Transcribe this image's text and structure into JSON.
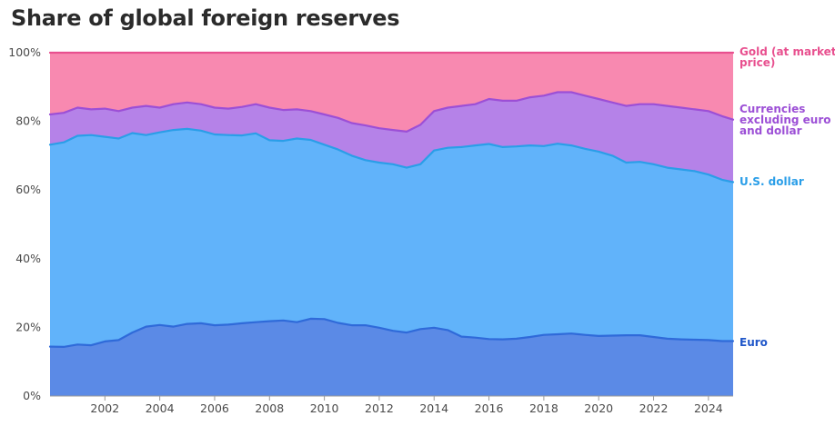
{
  "chart_data": {
    "type": "area",
    "stacked": true,
    "title": "Share of global foreign reserves",
    "xlabel": "",
    "ylabel": "",
    "ylim": [
      0,
      100
    ],
    "xlim": [
      2000.0,
      2024.9
    ],
    "y_ticks": [
      "0%",
      "20%",
      "40%",
      "60%",
      "80%",
      "100%"
    ],
    "x_ticks": [
      "2002",
      "2004",
      "2006",
      "2008",
      "2010",
      "2012",
      "2014",
      "2016",
      "2018",
      "2020",
      "2022",
      "2024"
    ],
    "grid": "horizontal",
    "x": [
      2000.0,
      2000.5,
      2001.0,
      2001.5,
      2002.0,
      2002.5,
      2003.0,
      2003.5,
      2004.0,
      2004.5,
      2005.0,
      2005.5,
      2006.0,
      2006.5,
      2007.0,
      2007.5,
      2008.0,
      2008.5,
      2009.0,
      2009.5,
      2010.0,
      2010.5,
      2011.0,
      2011.5,
      2012.0,
      2012.5,
      2013.0,
      2013.5,
      2014.0,
      2014.5,
      2015.0,
      2015.5,
      2016.0,
      2016.5,
      2017.0,
      2017.5,
      2018.0,
      2018.5,
      2019.0,
      2019.5,
      2020.0,
      2020.5,
      2021.0,
      2021.5,
      2022.0,
      2022.5,
      2023.0,
      2023.5,
      2024.0,
      2024.5,
      2024.9
    ],
    "series": [
      {
        "name": "Euro",
        "color": "#2f6ad9",
        "fill": "#5b8ae6",
        "values": [
          14.4,
          14.3,
          15.0,
          14.8,
          15.9,
          16.3,
          18.5,
          20.2,
          20.7,
          20.2,
          21.0,
          21.2,
          20.6,
          20.8,
          21.2,
          21.5,
          21.8,
          22.0,
          21.5,
          22.5,
          22.4,
          21.3,
          20.6,
          20.6,
          19.9,
          19.0,
          18.5,
          19.5,
          19.9,
          19.2,
          17.3,
          17.0,
          16.6,
          16.5,
          16.7,
          17.2,
          17.8,
          18.0,
          18.2,
          17.8,
          17.5,
          17.6,
          17.7,
          17.7,
          17.2,
          16.7,
          16.5,
          16.4,
          16.3,
          16.0,
          16.0
        ]
      },
      {
        "name": "U.S. dollar",
        "color": "#2a9ee8",
        "fill": "#61b3fa",
        "values": [
          73.2,
          73.9,
          75.8,
          76.0,
          75.5,
          75.0,
          76.6,
          76.0,
          76.8,
          77.5,
          77.8,
          77.3,
          76.2,
          76.0,
          75.9,
          76.5,
          74.5,
          74.3,
          75.0,
          74.6,
          73.2,
          71.8,
          70.0,
          68.7,
          68.0,
          67.5,
          66.5,
          67.5,
          71.5,
          72.3,
          72.5,
          73.0,
          73.4,
          72.5,
          72.7,
          73.0,
          72.8,
          73.5,
          73.0,
          72.0,
          71.2,
          70.0,
          68.0,
          68.2,
          67.5,
          66.5,
          66.0,
          65.5,
          64.5,
          63.0,
          62.3
        ]
      },
      {
        "name": "Currencies excluding euro and dollar",
        "color": "#9c4fd6",
        "fill": "#b582e8",
        "values": [
          82.0,
          82.5,
          84.0,
          83.5,
          83.7,
          83.0,
          84.0,
          84.5,
          84.0,
          85.0,
          85.5,
          85.0,
          84.0,
          83.7,
          84.2,
          85.0,
          84.0,
          83.3,
          83.5,
          83.0,
          82.0,
          81.0,
          79.5,
          78.8,
          78.0,
          77.5,
          77.0,
          79.0,
          83.0,
          84.0,
          84.5,
          85.0,
          86.5,
          86.0,
          86.0,
          87.0,
          87.5,
          88.5,
          88.5,
          87.5,
          86.5,
          85.5,
          84.5,
          85.0,
          85.0,
          84.5,
          84.0,
          83.5,
          83.0,
          81.5,
          80.5
        ]
      },
      {
        "name": "Gold (at market price)",
        "color": "#e8508f",
        "fill": "#f889b0",
        "values": [
          100,
          100,
          100,
          100,
          100,
          100,
          100,
          100,
          100,
          100,
          100,
          100,
          100,
          100,
          100,
          100,
          100,
          100,
          100,
          100,
          100,
          100,
          100,
          100,
          100,
          100,
          100,
          100,
          100,
          100,
          100,
          100,
          100,
          100,
          100,
          100,
          100,
          100,
          100,
          100,
          100,
          100,
          100,
          100,
          100,
          100,
          100,
          100,
          100,
          100,
          100
        ]
      }
    ]
  },
  "labels": {
    "gold_line1": "Gold (at market",
    "gold_line2": "price)",
    "other_line1": "Currencies",
    "other_line2": "excluding euro",
    "other_line3": "and dollar",
    "usd": "U.S. dollar",
    "euro": "Euro"
  }
}
